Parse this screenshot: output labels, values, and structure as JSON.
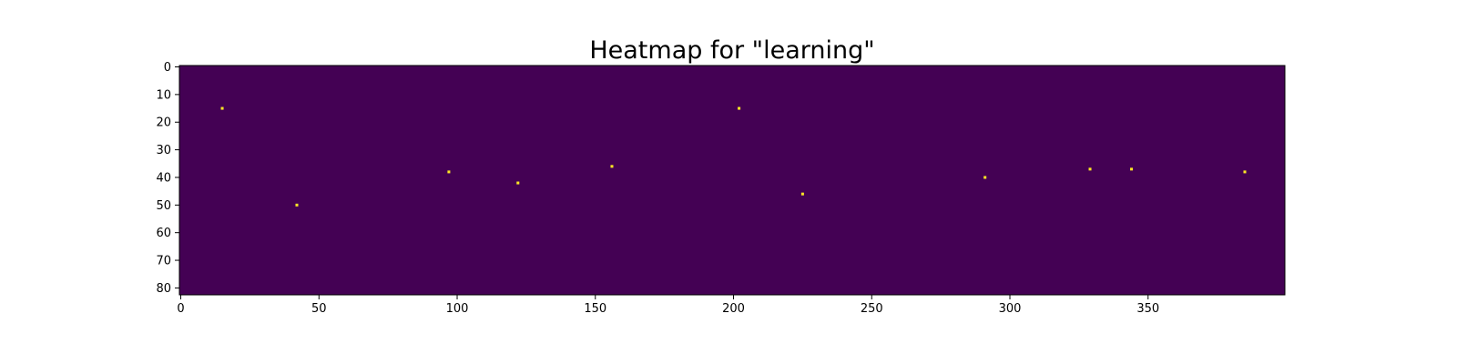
{
  "chart_data": {
    "type": "heatmap",
    "title": "Heatmap for \"learning\"",
    "xlabel": "",
    "ylabel": "",
    "xlim": [
      -0.5,
      399.5
    ],
    "ylim": [
      82.5,
      -0.5
    ],
    "x_ticks": [
      0,
      50,
      100,
      150,
      200,
      250,
      300,
      350
    ],
    "y_ticks": [
      0,
      10,
      20,
      30,
      40,
      50,
      60,
      70,
      80
    ],
    "grid": false,
    "background_value": 0,
    "colors": {
      "low": "#440154",
      "high": "#fde725"
    },
    "points": [
      {
        "x": 15,
        "y": 15,
        "value": 1
      },
      {
        "x": 42,
        "y": 50,
        "value": 1
      },
      {
        "x": 97,
        "y": 38,
        "value": 1
      },
      {
        "x": 122,
        "y": 42,
        "value": 1
      },
      {
        "x": 156,
        "y": 36,
        "value": 1
      },
      {
        "x": 202,
        "y": 15,
        "value": 1
      },
      {
        "x": 225,
        "y": 46,
        "value": 1
      },
      {
        "x": 291,
        "y": 40,
        "value": 1
      },
      {
        "x": 329,
        "y": 37,
        "value": 1
      },
      {
        "x": 344,
        "y": 37,
        "value": 1
      },
      {
        "x": 385,
        "y": 38,
        "value": 1
      }
    ]
  }
}
